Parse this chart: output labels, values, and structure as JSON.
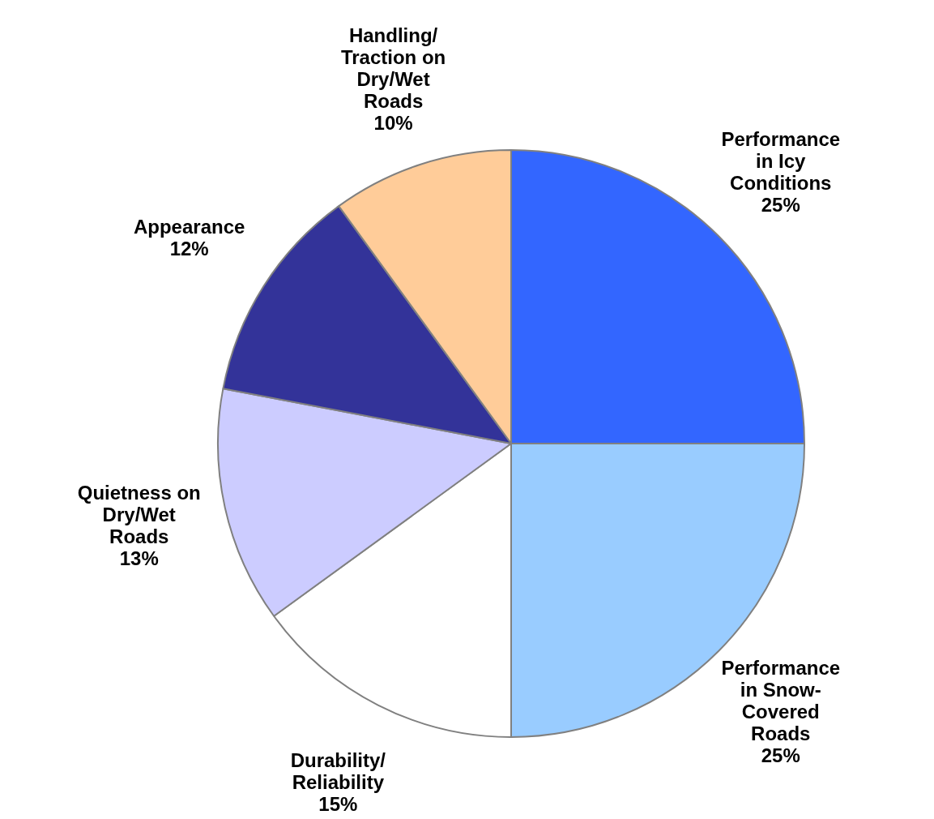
{
  "chart_data": {
    "type": "pie",
    "categories": [
      "Performance in Icy Conditions",
      "Performance in Snow-Covered Roads",
      "Durability/ Reliability",
      "Quietness on Dry/Wet Roads",
      "Appearance",
      "Handling/ Traction on Dry/Wet Roads"
    ],
    "values": [
      25,
      25,
      15,
      13,
      12,
      10
    ],
    "colors": [
      "#3366ff",
      "#99ccff",
      "#ffffff",
      "#ccccff",
      "#333399",
      "#ffcc99"
    ],
    "value_labels": [
      "25%",
      "25%",
      "15%",
      "13%",
      "12%",
      "10%"
    ],
    "legend": false
  }
}
